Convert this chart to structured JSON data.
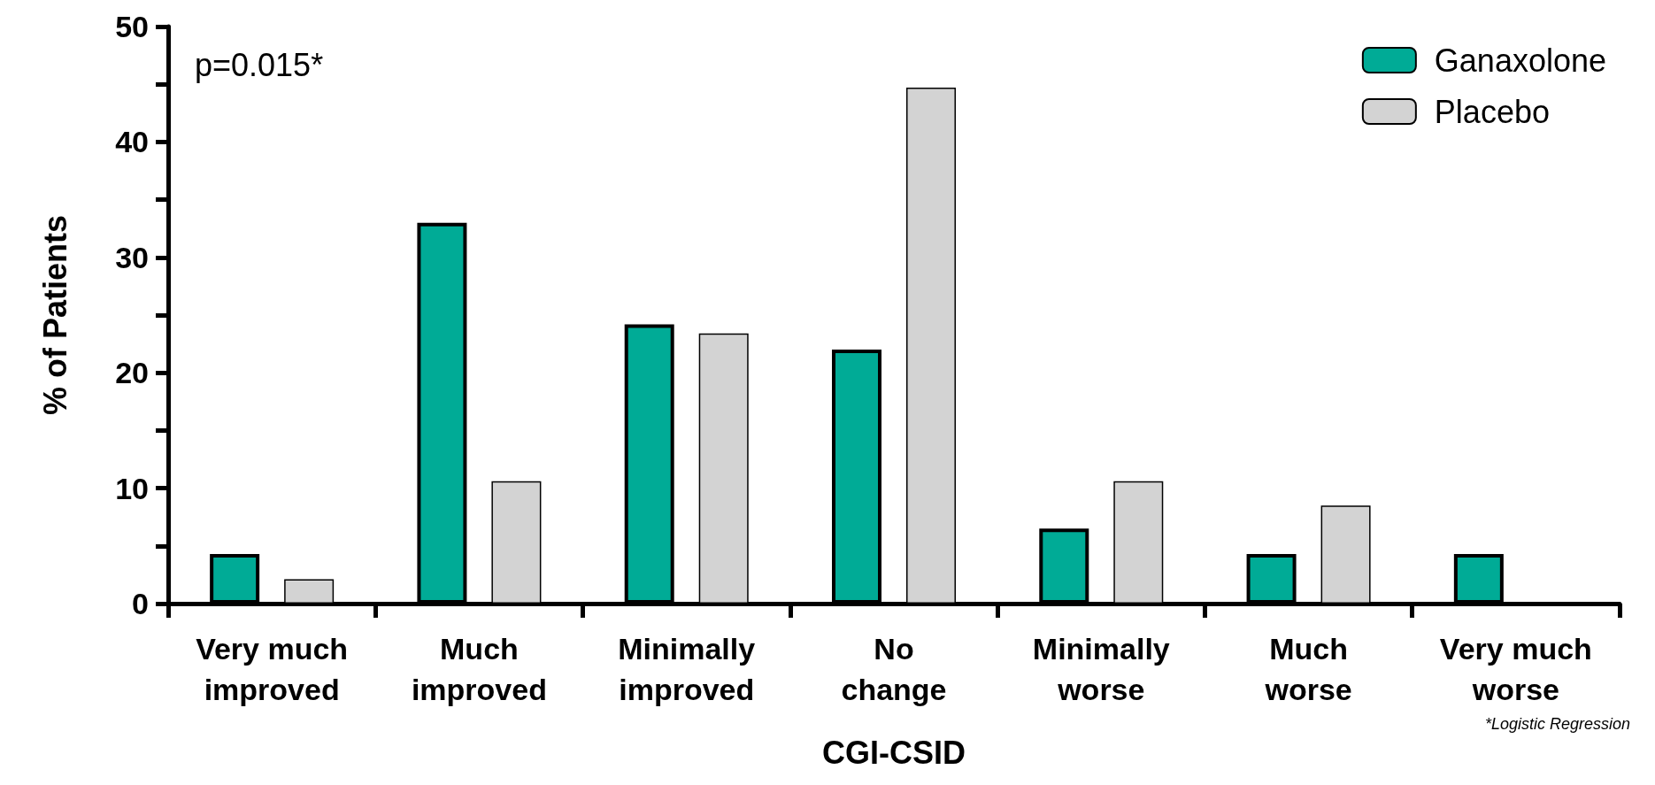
{
  "chart_data": {
    "type": "bar",
    "xlabel": "CGI-CSID",
    "ylabel": "% of Patients",
    "categories": [
      "Very much\nimproved",
      "Much\nimproved",
      "Minimally\nimproved",
      "No\nchange",
      "Minimally\nworse",
      "Much\nworse",
      "Very much\nworse"
    ],
    "series": [
      {
        "name": "Ganaxolone",
        "color": "#00ab96",
        "values": [
          4.3,
          33.0,
          24.2,
          22.0,
          6.5,
          4.3,
          4.3
        ]
      },
      {
        "name": "Placebo",
        "color": "#d3d3d3",
        "values": [
          2.1,
          10.6,
          23.4,
          44.7,
          10.6,
          8.5,
          null
        ]
      }
    ],
    "ylim": [
      0,
      50
    ],
    "yticks": [
      0,
      {
        "value": 5,
        "label": null
      },
      10,
      {
        "value": 15,
        "label": null
      },
      20,
      {
        "value": 25,
        "label": null
      },
      30,
      {
        "value": 35,
        "label": null
      },
      40,
      {
        "value": 45,
        "label": null
      },
      50
    ],
    "grid": false,
    "legend": "top right",
    "annotations": [
      "p=0.015*",
      "*Logistic Regression"
    ]
  }
}
